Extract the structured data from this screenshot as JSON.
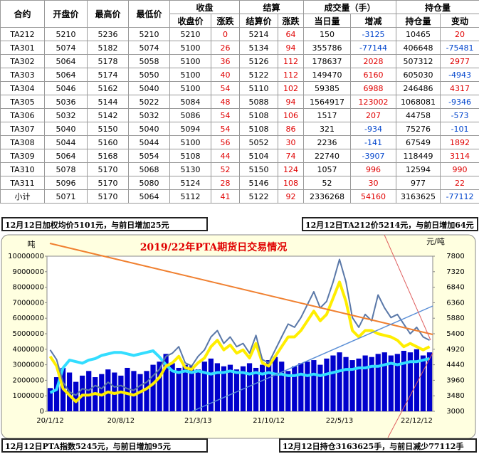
{
  "table": {
    "group_headers": [
      "合约",
      "开盘价",
      "最高价",
      "最低价",
      "收盘",
      "结算",
      "成交量（手）",
      "持仓量"
    ],
    "sub_headers": [
      "收盘价",
      "涨跌",
      "结算价",
      "涨跌",
      "当日量",
      "增减",
      "持仓量",
      "变动"
    ],
    "rows": [
      [
        "TA212",
        "5210",
        "5236",
        "5210",
        "5210",
        "0",
        "5214",
        "64",
        "150",
        "-3125",
        "10465",
        "20"
      ],
      [
        "TA301",
        "5074",
        "5182",
        "5074",
        "5100",
        "26",
        "5134",
        "94",
        "355786",
        "-77144",
        "406648",
        "-75481"
      ],
      [
        "TA302",
        "5064",
        "5178",
        "5058",
        "5100",
        "36",
        "5126",
        "112",
        "178637",
        "2028",
        "507312",
        "2977"
      ],
      [
        "TA303",
        "5064",
        "5174",
        "5050",
        "5100",
        "40",
        "5122",
        "112",
        "149470",
        "6160",
        "605030",
        "-4943"
      ],
      [
        "TA304",
        "5046",
        "5162",
        "5040",
        "5100",
        "54",
        "5110",
        "102",
        "59385",
        "6988",
        "246486",
        "4317"
      ],
      [
        "TA305",
        "5036",
        "5144",
        "5022",
        "5084",
        "48",
        "5088",
        "94",
        "1564917",
        "123002",
        "1068081",
        "-9346"
      ],
      [
        "TA306",
        "5032",
        "5142",
        "5032",
        "5086",
        "54",
        "5108",
        "106",
        "1517",
        "207",
        "44758",
        "-573"
      ],
      [
        "TA307",
        "5040",
        "5150",
        "5040",
        "5094",
        "54",
        "5108",
        "86",
        "321",
        "-934",
        "75276",
        "-101"
      ],
      [
        "TA308",
        "5044",
        "5160",
        "5044",
        "5100",
        "56",
        "5052",
        "30",
        "2236",
        "-141",
        "67549",
        "1892"
      ],
      [
        "TA309",
        "5064",
        "5168",
        "5054",
        "5108",
        "44",
        "5104",
        "74",
        "22740",
        "-3907",
        "118449",
        "3114"
      ],
      [
        "TA310",
        "5078",
        "5170",
        "5068",
        "5130",
        "52",
        "5150",
        "124",
        "1057",
        "996",
        "12594",
        "990"
      ],
      [
        "TA311",
        "5096",
        "5170",
        "5080",
        "5124",
        "28",
        "5146",
        "108",
        "52",
        "30",
        "977",
        "22"
      ],
      [
        "小计",
        "5071",
        "5170",
        "5064",
        "5112",
        "41",
        "5122",
        "92",
        "2336268",
        "54160",
        "3163625",
        "-77112"
      ]
    ]
  },
  "annotations": {
    "top_left": "12月12日加权均价5101元，与前日增加25元",
    "top_right": "12月12日TA212价5214元，与前日增加64元",
    "bottom_left": "12月12日PTA指数5245元，与前日增加95元",
    "bottom_right": "12月12日持仓3163625手，与前日减少77112手"
  },
  "chart_data": {
    "type": "combo",
    "title": "2019/22年PTA期货日交易情况",
    "y_label": "吨",
    "y2_label": "元/吨",
    "categories": [
      "20/1/12",
      null,
      null,
      null,
      null,
      null,
      null,
      null,
      null,
      null,
      null,
      "20/8/12",
      null,
      null,
      null,
      null,
      null,
      null,
      null,
      null,
      null,
      null,
      null,
      "21/3/13",
      null,
      null,
      null,
      null,
      null,
      null,
      null,
      null,
      null,
      null,
      "21/10/12",
      null,
      null,
      null,
      null,
      null,
      null,
      null,
      null,
      null,
      null,
      "22/5/13",
      null,
      null,
      null,
      null,
      null,
      null,
      null,
      null,
      null,
      null,
      null,
      "22/12/12",
      null,
      null
    ],
    "ylim": [
      0,
      10000000
    ],
    "yticks": [
      0,
      1000000,
      2000000,
      3000000,
      4000000,
      5000000,
      6000000,
      7000000,
      8000000,
      9000000,
      10000000
    ],
    "y2lim": [
      3000,
      7800
    ],
    "y2ticks": [
      3000,
      3480,
      3960,
      4440,
      4920,
      5400,
      5880,
      6360,
      6840,
      7320,
      7800
    ],
    "series": [
      {
        "type": "bar",
        "color": "#0000cc",
        "values": [
          1500000,
          2200000,
          2800000,
          2500000,
          1900000,
          2300000,
          2600000,
          2200000,
          2400000,
          2700000,
          2500000,
          2300000,
          2800000,
          2600000,
          2400000,
          2600000,
          3000000,
          3200000,
          3700000,
          3100000,
          2800000,
          3000000,
          2900000,
          2700000,
          3200000,
          3400000,
          3100000,
          2900000,
          3000000,
          2700000,
          2900000,
          3100000,
          2800000,
          3000000,
          3300000,
          3500000,
          3200000,
          2600000,
          2900000,
          3100000,
          3200000,
          3300000,
          3000000,
          3400000,
          3600000,
          3800000,
          3500000,
          3300000,
          3400000,
          3600000,
          3500000,
          3700000,
          3800000,
          3600000,
          3700000,
          3900000,
          3800000,
          4000000,
          3600000,
          3800000
        ]
      },
      {
        "type": "line",
        "color": "#33ddff",
        "width": 4,
        "values": [
          1200000,
          1400000,
          2800000,
          3300000,
          3200000,
          3100000,
          3300000,
          3400000,
          3600000,
          3700000,
          3800000,
          3800000,
          3700000,
          3600000,
          3700000,
          3800000,
          3900000,
          3500000,
          3000000,
          2600000,
          2500000,
          2600000,
          2500000,
          2600000,
          2500000,
          2400000,
          2500000,
          2500000,
          2600000,
          2500000,
          2500000,
          2400000,
          2500000,
          2400000,
          2500000,
          2400000,
          2400000,
          2300000,
          2300000,
          2400000,
          2300000,
          2400000,
          2300000,
          2400000,
          2500000,
          2600000,
          2700000,
          2700000,
          2800000,
          2800000,
          2900000,
          2900000,
          3000000,
          3100000,
          3000000,
          3100000,
          3200000,
          3200000,
          3300000,
          3400000
        ]
      },
      {
        "type": "line",
        "axis": "y2",
        "color": "#ffee00",
        "width": 4,
        "values": [
          4700,
          4400,
          3700,
          3500,
          3300,
          3500,
          3500,
          3550,
          3500,
          3600,
          3550,
          3600,
          3550,
          3500,
          3600,
          3700,
          3850,
          4050,
          4400,
          4500,
          4700,
          4350,
          4300,
          4500,
          4650,
          5000,
          5200,
          4900,
          5050,
          4800,
          4900,
          4650,
          5100,
          4500,
          4400,
          4700,
          5000,
          5300,
          5300,
          5500,
          5800,
          6100,
          5800,
          6000,
          6500,
          7000,
          6400,
          5500,
          5300,
          5500,
          5500,
          5400,
          5350,
          5300,
          5200,
          5000,
          5100,
          5000,
          4900,
          5000
        ]
      },
      {
        "type": "line",
        "axis": "y2",
        "color": "#5a78a8",
        "width": 2,
        "values": [
          4900,
          4600,
          3900,
          3600,
          3500,
          3700,
          3650,
          3800,
          3700,
          3900,
          3750,
          3800,
          3700,
          3650,
          3800,
          3900,
          4100,
          4300,
          4700,
          4800,
          5000,
          4500,
          4400,
          4700,
          4900,
          5300,
          5500,
          5100,
          5300,
          5000,
          5100,
          4800,
          5350,
          4600,
          4500,
          4900,
          5300,
          5700,
          5600,
          5900,
          6300,
          6700,
          6200,
          6400,
          7000,
          7700,
          7000,
          5900,
          5600,
          6000,
          5800,
          6600,
          6200,
          5900,
          6000,
          5700,
          5400,
          5600,
          5300,
          5200
        ]
      }
    ]
  }
}
